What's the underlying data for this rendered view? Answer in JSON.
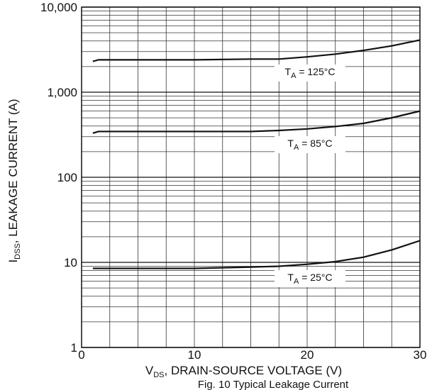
{
  "chart_data": {
    "type": "line",
    "caption": "Fig. 10 Typical Leakage Current",
    "x_label": {
      "text": "V",
      "sub": "DS",
      "rest": ", DRAIN-SOURCE VOLTAGE (V)"
    },
    "y_label": {
      "text": "I",
      "sub": "DSS",
      "rest": ", LEAKAGE CURRENT (A)"
    },
    "x": [
      1,
      1.5,
      5,
      10,
      15,
      17.5,
      20,
      22.5,
      25,
      27.5,
      30
    ],
    "series": [
      {
        "label": {
          "text": "T",
          "sub": "A",
          "rest": " = 125°C"
        },
        "color": "#111111",
        "values": [
          2300,
          2400,
          2400,
          2400,
          2450,
          2450,
          2600,
          2800,
          3100,
          3500,
          4100
        ]
      },
      {
        "label": {
          "text": "T",
          "sub": "A",
          "rest": " = 85°C"
        },
        "color": "#111111",
        "values": [
          330,
          345,
          345,
          345,
          345,
          355,
          370,
          395,
          430,
          500,
          600
        ]
      },
      {
        "label": {
          "text": "T",
          "sub": "A",
          "rest": " = 25°C"
        },
        "color": "#111111",
        "values": [
          8.5,
          8.5,
          8.5,
          8.5,
          8.8,
          9,
          9.5,
          10.2,
          11.5,
          14,
          18
        ]
      }
    ],
    "xlim": [
      0,
      30
    ],
    "xticks": [
      0,
      10,
      20,
      30
    ],
    "xgrid": [
      2.5,
      5,
      7.5,
      12.5,
      15,
      17.5,
      22.5,
      25,
      27.5
    ],
    "ylim": [
      1,
      10000
    ],
    "yticks": [
      {
        "value": 10000,
        "label": "10,000"
      },
      {
        "value": 1000,
        "label": "1,000"
      },
      100,
      10,
      1
    ],
    "log_y": true,
    "grid": true,
    "minor_grid": true
  }
}
